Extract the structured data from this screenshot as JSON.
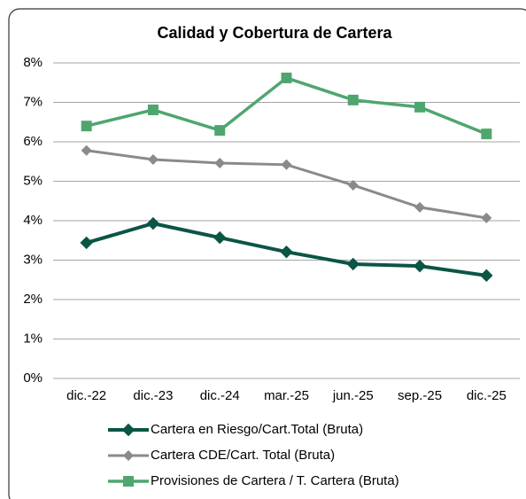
{
  "chart_data": {
    "type": "line",
    "title": "Calidad y Cobertura de Cartera",
    "categories": [
      "dic.-22",
      "dic.-23",
      "dic.-24",
      "mar.-25",
      "jun.-25",
      "sep.-25",
      "dic.-25"
    ],
    "series": [
      {
        "name": "Cartera en Riesgo/Cart.Total (Bruta)",
        "color": "#0b5546",
        "marker": "diamond",
        "values": [
          3.44,
          3.93,
          3.57,
          3.21,
          2.9,
          2.85,
          2.61
        ]
      },
      {
        "name": "Cartera CDE/Cart. Total (Bruta)",
        "color": "#8a8a8a",
        "marker": "diamond",
        "values": [
          5.78,
          5.55,
          5.46,
          5.42,
          4.9,
          4.34,
          4.07
        ]
      },
      {
        "name": "Provisiones de Cartera / T. Cartera (Bruta)",
        "color": "#4ea66e",
        "marker": "square",
        "values": [
          6.4,
          6.81,
          6.29,
          7.62,
          7.06,
          6.88,
          6.2
        ]
      }
    ],
    "ylim": [
      0,
      8
    ],
    "yticks": [
      {
        "value": 0,
        "label": "0%"
      },
      {
        "value": 1,
        "label": "1%"
      },
      {
        "value": 2,
        "label": "2%"
      },
      {
        "value": 3,
        "label": "3%"
      },
      {
        "value": 4,
        "label": "4%"
      },
      {
        "value": 5,
        "label": "5%"
      },
      {
        "value": 6,
        "label": "6%"
      },
      {
        "value": 7,
        "label": "7%"
      },
      {
        "value": 8,
        "label": "8%"
      }
    ],
    "grid": true,
    "legend": "bottom"
  }
}
